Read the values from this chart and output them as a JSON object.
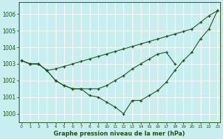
{
  "xlabel": "Graphe pression niveau de la mer (hPa)",
  "bg_color": "#c8eef0",
  "line_color": "#1a5218",
  "grid_color": "#ffffff",
  "ylim": [
    999.5,
    1006.7
  ],
  "xlim": [
    -0.3,
    23.3
  ],
  "yticks": [
    1000,
    1001,
    1002,
    1003,
    1004,
    1005,
    1006
  ],
  "xticks": [
    0,
    1,
    2,
    3,
    4,
    5,
    6,
    7,
    8,
    9,
    10,
    11,
    12,
    13,
    14,
    15,
    16,
    17,
    18,
    19,
    20,
    21,
    22,
    23
  ],
  "lines": [
    [
      1003.2,
      1003.0,
      1003.0,
      1002.6,
      1002.0,
      1001.7,
      1001.5,
      1001.5,
      1001.1,
      1001.0,
      1000.7,
      1000.4,
      1000.0,
      1000.8,
      1000.8,
      1001.1,
      1001.4,
      1001.9,
      1002.6,
      1003.2,
      1003.7,
      1004.5,
      1005.1,
      1006.2
    ],
    [
      1003.2,
      1003.0,
      1003.0,
      1002.6,
      1002.7,
      1002.85,
      1003.0,
      1003.15,
      1003.3,
      1003.45,
      1003.6,
      1003.75,
      1003.9,
      1004.05,
      1004.2,
      1004.35,
      1004.5,
      1004.65,
      1004.8,
      1004.95,
      1005.1,
      1005.5,
      1005.9,
      1006.2
    ],
    [
      1003.2,
      1003.0,
      1003.0,
      1002.6,
      1002.0,
      1001.7,
      1001.5,
      1001.5,
      1001.5,
      1001.5,
      1001.7,
      1002.0,
      1002.3,
      1002.7,
      1003.0,
      1003.3,
      1003.6,
      1003.7,
      1003.0,
      null,
      null,
      null,
      null,
      null
    ]
  ]
}
